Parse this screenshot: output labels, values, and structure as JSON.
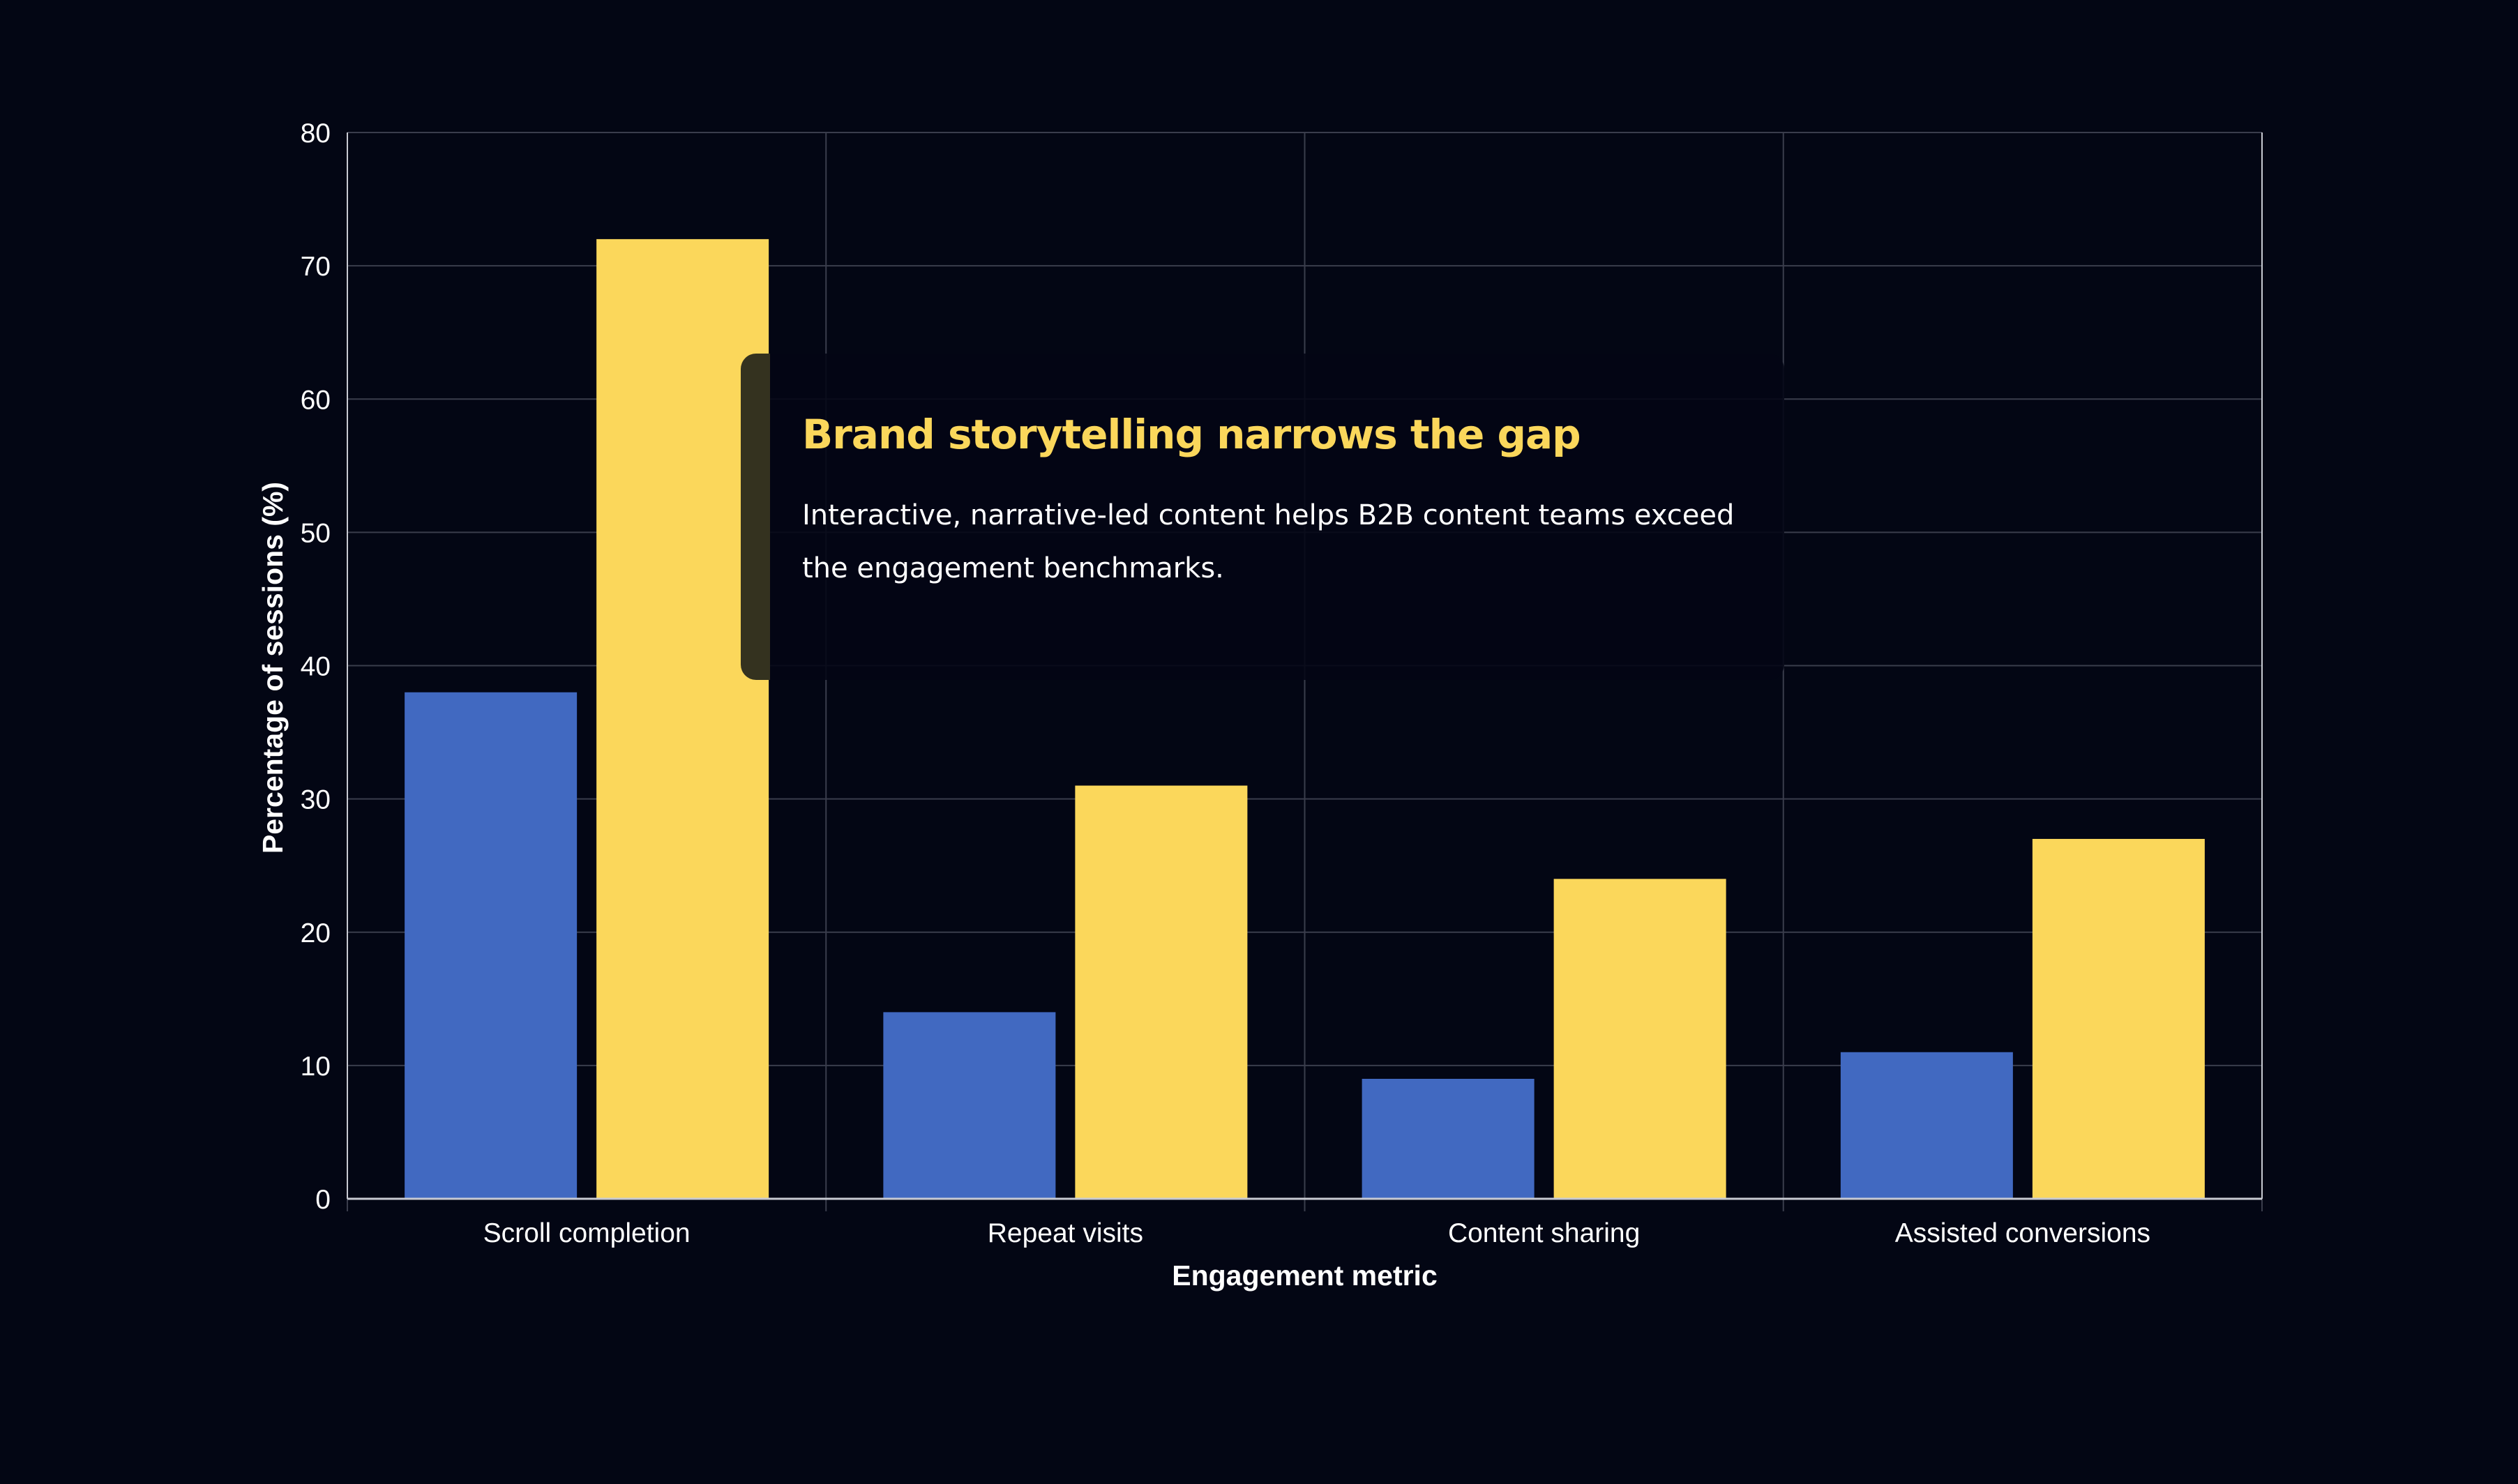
{
  "colors": {
    "background": "#030614",
    "series_baseline": "#4169c1",
    "series_storytelling": "#fbd75b",
    "grid": "#3a3d4c",
    "axis": "#c8cad2",
    "text": "#ffffff"
  },
  "callout": {
    "title": "Brand storytelling narrows the gap",
    "body": "Interactive, narrative-led content helps B2B content teams exceed the engagement benchmarks."
  },
  "chart_data": {
    "type": "bar",
    "categories": [
      "Scroll completion",
      "Repeat visits",
      "Content sharing",
      "Assisted conversions"
    ],
    "series": [
      {
        "values": [
          38,
          14,
          9,
          11
        ],
        "color": "#4169c1"
      },
      {
        "values": [
          72,
          31,
          24,
          27
        ],
        "color": "#fbd75b"
      }
    ],
    "title": "",
    "xlabel": "Engagement metric",
    "ylabel": "Percentage of sessions (%)",
    "ylim": [
      0,
      80
    ],
    "yticks": [
      0,
      10,
      20,
      30,
      40,
      50,
      60,
      70,
      80
    ],
    "grid": true,
    "legend": "none"
  }
}
